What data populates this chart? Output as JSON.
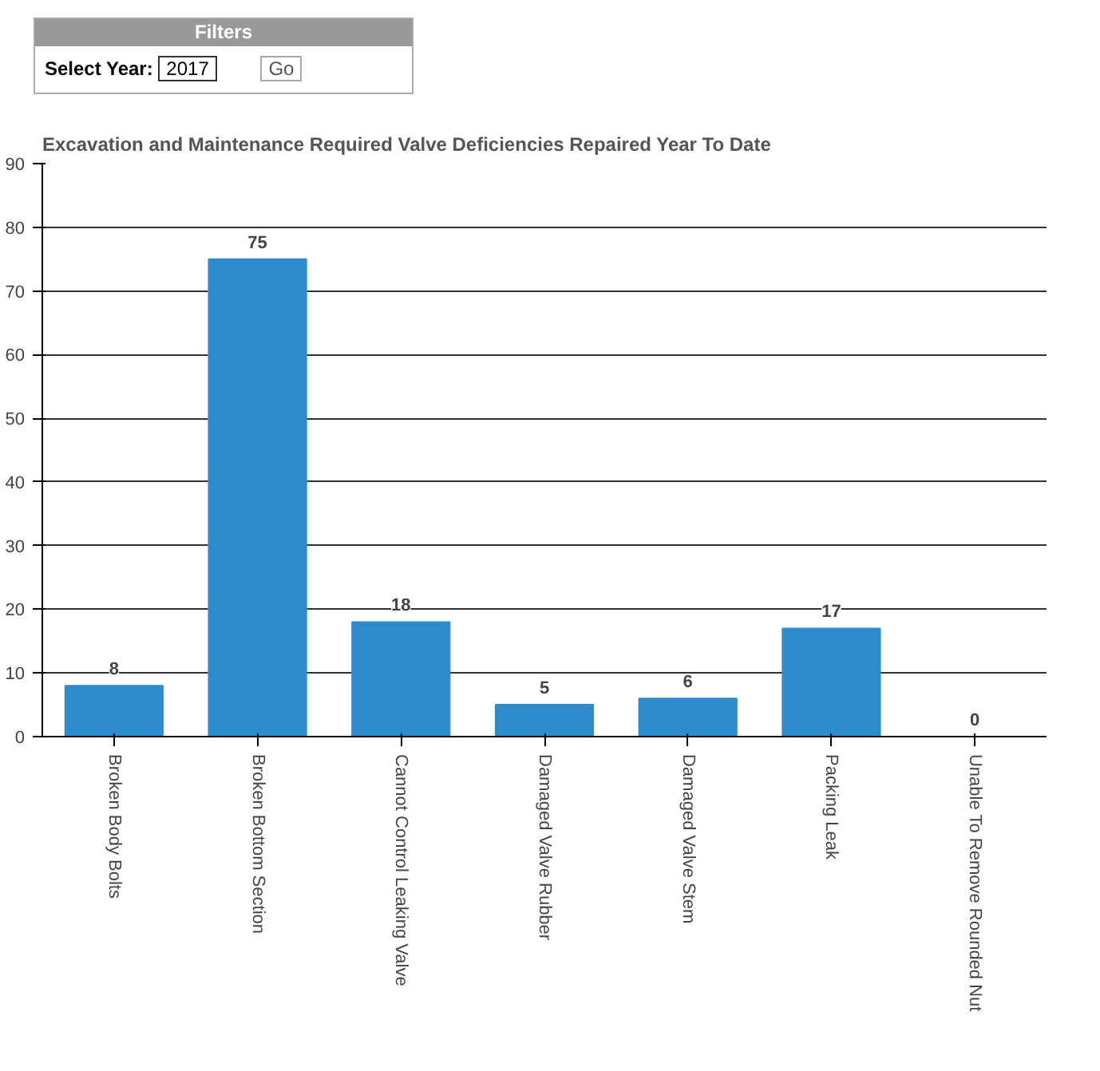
{
  "chart_data": {
    "type": "bar",
    "title": "Excavation and Maintenance Required Valve Deficiencies Repaired Year To Date",
    "annotations": [
      "Filters",
      "Select Year:",
      "2017",
      "Go"
    ],
    "categories": [
      "Broken Body Bolts",
      "Broken Bottom Section",
      "Cannot Control Leaking Valve",
      "Damaged Valve Rubber",
      "Damaged Valve Stem",
      "Packing Leak",
      "Unable To Remove Rounded Nut"
    ],
    "values": [
      8,
      75,
      18,
      5,
      6,
      17,
      0
    ],
    "color": "#2e8bcc",
    "ylim": [
      0,
      90
    ],
    "yticks": [
      0,
      10,
      20,
      30,
      40,
      50,
      60,
      70,
      80,
      90
    ],
    "grid": "y",
    "data_labels": true
  }
}
